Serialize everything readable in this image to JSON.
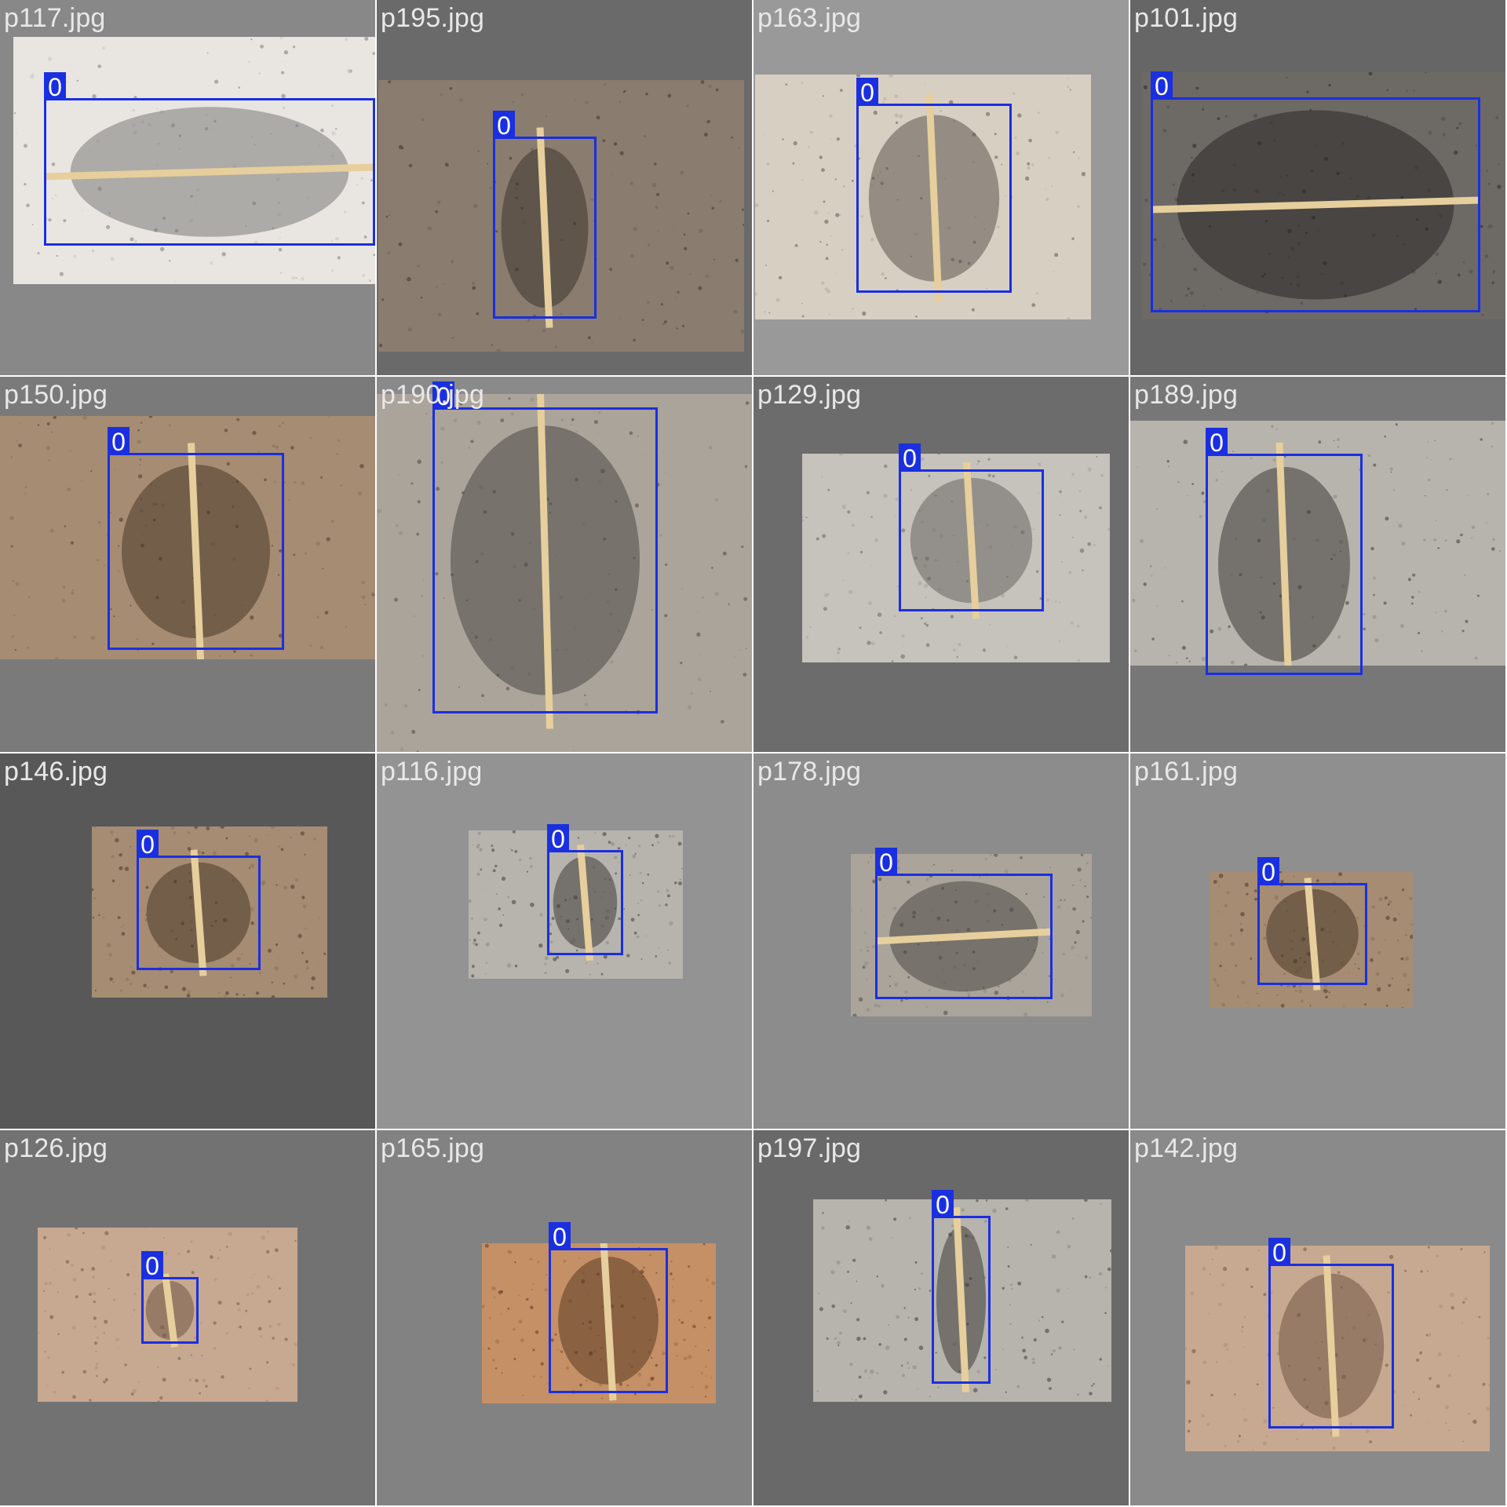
{
  "grid": {
    "columns": 4,
    "rows": 4
  },
  "colors": {
    "box": "#1a2fe0",
    "label_text": "#ffffff",
    "filename_text": "#e8e8e8"
  },
  "tiles": [
    {
      "filename": "p117.jpg",
      "class_label": "0",
      "background": "#888888",
      "photo_tone": "light-gray"
    },
    {
      "filename": "p195.jpg",
      "class_label": "0",
      "background": "#6a6a6a",
      "photo_tone": "brown"
    },
    {
      "filename": "p163.jpg",
      "class_label": "0",
      "background": "#999999",
      "photo_tone": "beige"
    },
    {
      "filename": "p101.jpg",
      "class_label": "0",
      "background": "#666666",
      "photo_tone": "dark-gray"
    },
    {
      "filename": "p150.jpg",
      "class_label": "0",
      "background": "#7a7a7a",
      "photo_tone": "tan"
    },
    {
      "filename": "p190.jpg",
      "class_label": "0",
      "background": "#8a8a8a",
      "photo_tone": "gray"
    },
    {
      "filename": "p129.jpg",
      "class_label": "0",
      "background": "#6c6c6c",
      "photo_tone": "concrete"
    },
    {
      "filename": "p189.jpg",
      "class_label": "0",
      "background": "#777777",
      "photo_tone": "speckled"
    },
    {
      "filename": "p146.jpg",
      "class_label": "0",
      "background": "#585858",
      "photo_tone": "tan"
    },
    {
      "filename": "p116.jpg",
      "class_label": "0",
      "background": "#939393",
      "photo_tone": "speckled"
    },
    {
      "filename": "p178.jpg",
      "class_label": "0",
      "background": "#8c8c8c",
      "photo_tone": "gray"
    },
    {
      "filename": "p161.jpg",
      "class_label": "0",
      "background": "#8f8f8f",
      "photo_tone": "tan"
    },
    {
      "filename": "p126.jpg",
      "class_label": "0",
      "background": "#727272",
      "photo_tone": "sand"
    },
    {
      "filename": "p165.jpg",
      "class_label": "0",
      "background": "#828282",
      "photo_tone": "orange"
    },
    {
      "filename": "p197.jpg",
      "class_label": "0",
      "background": "#696969",
      "photo_tone": "speckled"
    },
    {
      "filename": "p142.jpg",
      "class_label": "0",
      "background": "#8a8a8a",
      "photo_tone": "sand"
    }
  ]
}
